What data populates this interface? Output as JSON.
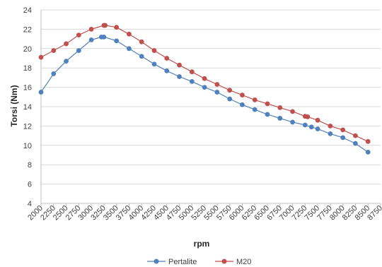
{
  "chart_data": {
    "type": "line",
    "xlabel": "rpm",
    "ylabel": "Torsi (Nm)",
    "xlim": [
      2000,
      8750
    ],
    "ylim": [
      4,
      24
    ],
    "x_ticks": [
      "2000",
      "2250",
      "2500",
      "2750",
      "3000",
      "3250",
      "3500",
      "3750",
      "4000",
      "4250",
      "4500",
      "4750",
      "5000",
      "5250",
      "5500",
      "5750",
      "6000",
      "6250",
      "6500",
      "6750",
      "7000",
      "7250",
      "7500",
      "7750",
      "8000",
      "8250",
      "8500",
      "8750"
    ],
    "y_ticks": [
      "4",
      "6",
      "8",
      "10",
      "12",
      "14",
      "16",
      "18",
      "20",
      "22",
      "24"
    ],
    "grid": "horizontal",
    "legend_position": "bottom",
    "series": [
      {
        "name": "Pertalite",
        "color": "#4f81bd",
        "points": [
          [
            2000,
            15.5
          ],
          [
            2250,
            17.4
          ],
          [
            2500,
            18.7
          ],
          [
            2750,
            19.8
          ],
          [
            3000,
            20.9
          ],
          [
            3200,
            21.2
          ],
          [
            3250,
            21.2
          ],
          [
            3500,
            20.8
          ],
          [
            3750,
            20.0
          ],
          [
            4000,
            19.2
          ],
          [
            4250,
            18.4
          ],
          [
            4500,
            17.7
          ],
          [
            4750,
            17.1
          ],
          [
            5000,
            16.6
          ],
          [
            5250,
            16.0
          ],
          [
            5500,
            15.5
          ],
          [
            5750,
            14.8
          ],
          [
            6000,
            14.2
          ],
          [
            6250,
            13.7
          ],
          [
            6500,
            13.2
          ],
          [
            6750,
            12.8
          ],
          [
            7000,
            12.4
          ],
          [
            7250,
            12.1
          ],
          [
            7375,
            11.9
          ],
          [
            7500,
            11.7
          ],
          [
            7750,
            11.2
          ],
          [
            8000,
            10.8
          ],
          [
            8250,
            10.2
          ],
          [
            8500,
            9.3
          ]
        ]
      },
      {
        "name": "M20",
        "color": "#c0504d",
        "points": [
          [
            2000,
            19.1
          ],
          [
            2250,
            19.8
          ],
          [
            2500,
            20.5
          ],
          [
            2750,
            21.4
          ],
          [
            3000,
            22.0
          ],
          [
            3250,
            22.4
          ],
          [
            3275,
            22.4
          ],
          [
            3500,
            22.2
          ],
          [
            3750,
            21.5
          ],
          [
            4000,
            20.7
          ],
          [
            4250,
            19.8
          ],
          [
            4500,
            19.0
          ],
          [
            4750,
            18.3
          ],
          [
            5000,
            17.6
          ],
          [
            5250,
            16.9
          ],
          [
            5500,
            16.3
          ],
          [
            5750,
            15.7
          ],
          [
            6000,
            15.2
          ],
          [
            6250,
            14.7
          ],
          [
            6500,
            14.3
          ],
          [
            6750,
            13.9
          ],
          [
            7000,
            13.5
          ],
          [
            7250,
            13.0
          ],
          [
            7300,
            12.95
          ],
          [
            7500,
            12.6
          ],
          [
            7750,
            12.0
          ],
          [
            8000,
            11.6
          ],
          [
            8250,
            11.0
          ],
          [
            8500,
            10.4
          ]
        ]
      }
    ]
  }
}
